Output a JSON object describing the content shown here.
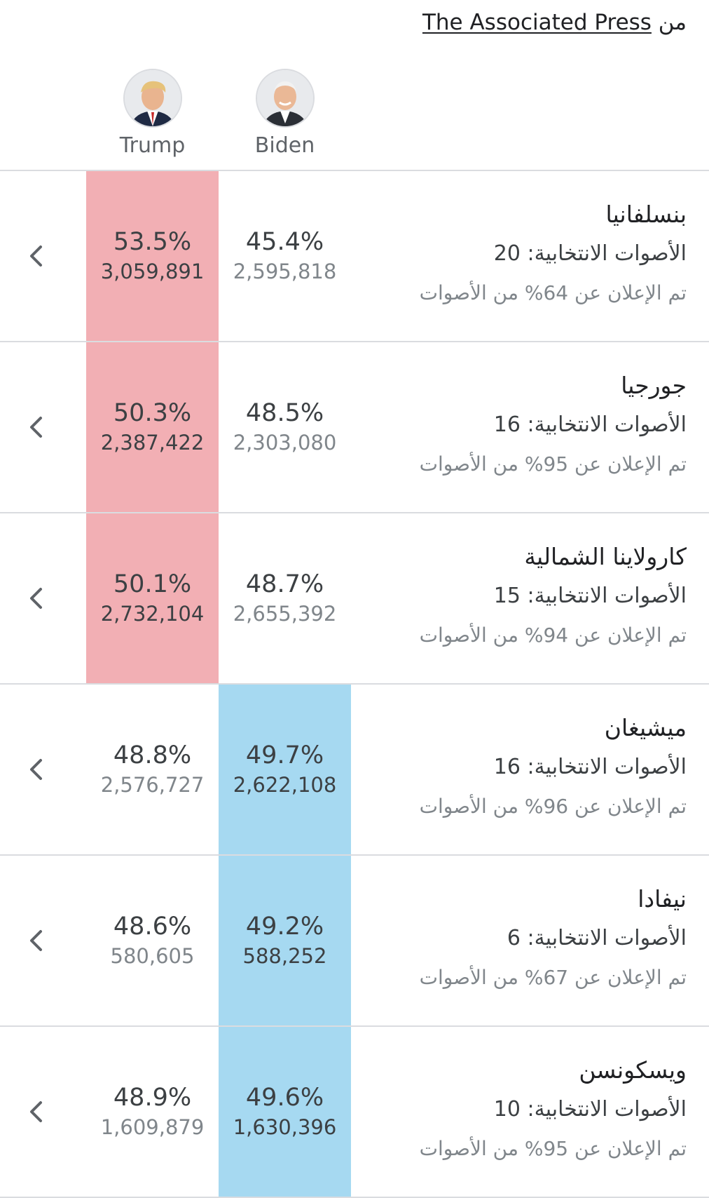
{
  "source": {
    "prefix": "من",
    "name": "The Associated Press"
  },
  "candidates": [
    {
      "name": "Trump",
      "party": "republican",
      "win_color": "#f2afb4"
    },
    {
      "name": "Biden",
      "party": "democrat",
      "win_color": "#a6d9f1"
    }
  ],
  "states": [
    {
      "name": "بنسلفانيا",
      "electoral": "الأصوات الانتخابية: 20",
      "reported": "تم الإعلان عن 64% من الأصوات",
      "trump": {
        "pct": "53.5%",
        "votes": "3,059,891"
      },
      "biden": {
        "pct": "45.4%",
        "votes": "2,595,818"
      },
      "leader": "trump"
    },
    {
      "name": "جورجيا",
      "electoral": "الأصوات الانتخابية: 16",
      "reported": "تم الإعلان عن 95% من الأصوات",
      "trump": {
        "pct": "50.3%",
        "votes": "2,387,422"
      },
      "biden": {
        "pct": "48.5%",
        "votes": "2,303,080"
      },
      "leader": "trump"
    },
    {
      "name": "كارولاينا الشمالية",
      "electoral": "الأصوات الانتخابية: 15",
      "reported": "تم الإعلان عن 94% من الأصوات",
      "trump": {
        "pct": "50.1%",
        "votes": "2,732,104"
      },
      "biden": {
        "pct": "48.7%",
        "votes": "2,655,392"
      },
      "leader": "trump"
    },
    {
      "name": "ميشيغان",
      "electoral": "الأصوات الانتخابية: 16",
      "reported": "تم الإعلان عن 96% من الأصوات",
      "trump": {
        "pct": "48.8%",
        "votes": "2,576,727"
      },
      "biden": {
        "pct": "49.7%",
        "votes": "2,622,108"
      },
      "leader": "biden"
    },
    {
      "name": "نيفادا",
      "electoral": "الأصوات الانتخابية: 6",
      "reported": "تم الإعلان عن 67% من الأصوات",
      "trump": {
        "pct": "48.6%",
        "votes": "580,605"
      },
      "biden": {
        "pct": "49.2%",
        "votes": "588,252"
      },
      "leader": "biden"
    },
    {
      "name": "ويسكونسن",
      "electoral": "الأصوات الانتخابية: 10",
      "reported": "تم الإعلان عن 95% من الأصوات",
      "trump": {
        "pct": "48.9%",
        "votes": "1,609,879"
      },
      "biden": {
        "pct": "49.6%",
        "votes": "1,630,396"
      },
      "leader": "biden"
    }
  ],
  "icons": {
    "expand": "chevron-left-icon"
  }
}
